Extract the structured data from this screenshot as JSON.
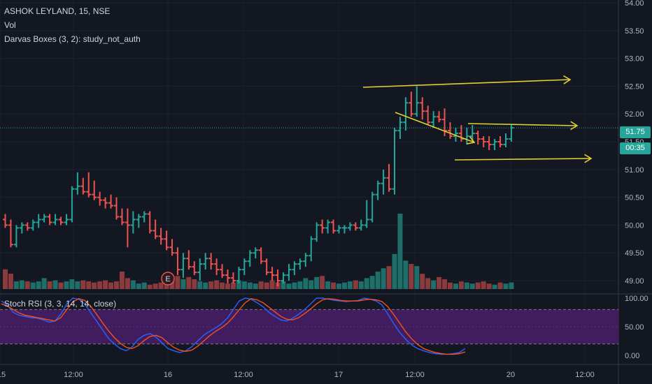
{
  "header": {
    "symbol_line": "ASHOK LEYLAND, 15, NSE",
    "indicator_vol": "Vol",
    "indicator_darvas": "Darvas Boxes (3, 2): study_not_auth"
  },
  "price_tags": {
    "last_price": "51.75",
    "countdown": "00:35"
  },
  "rsi_panel": {
    "title": "Stoch RSI (3, 3, 14, 14, close)"
  },
  "colors": {
    "background": "#131722",
    "up": "#26a69a",
    "down": "#ef5350",
    "volume_up": "#1e6f69",
    "volume_down": "#8b3a3d",
    "annotation": "#e0d030",
    "rsi_k": "#2962ff",
    "rsi_d": "#f4511e",
    "rsi_band": "#4a1f6b",
    "price_line": "#26a69a"
  },
  "chart_data": [
    {
      "type": "candlestick",
      "title": "",
      "y_axis": {
        "ticks": [
          "54.00",
          "53.50",
          "53.00",
          "52.50",
          "52.00",
          "51.50",
          "51.00",
          "50.50",
          "50.00",
          "49.50",
          "49.00"
        ],
        "range": [
          48.85,
          54.1
        ]
      },
      "x_axis": {
        "ticks": [
          "15",
          "12:00",
          "16",
          "12:00",
          "17",
          "12:00",
          "20",
          "12:00"
        ]
      },
      "last_price": 51.75,
      "ohlc": [
        [
          50.1,
          50.2,
          49.95,
          50.0
        ],
        [
          50.0,
          50.1,
          49.6,
          49.65
        ],
        [
          49.65,
          50.0,
          49.6,
          49.95
        ],
        [
          49.95,
          50.05,
          49.85,
          50.0
        ],
        [
          50.0,
          50.05,
          49.9,
          49.95
        ],
        [
          49.95,
          50.1,
          49.9,
          50.05
        ],
        [
          50.05,
          50.2,
          49.95,
          50.1
        ],
        [
          50.1,
          50.2,
          50.05,
          50.15
        ],
        [
          50.15,
          50.2,
          50.0,
          50.05
        ],
        [
          50.05,
          50.2,
          50.0,
          50.1
        ],
        [
          50.1,
          50.15,
          50.0,
          50.05
        ],
        [
          50.05,
          50.2,
          50.0,
          50.1
        ],
        [
          50.1,
          50.7,
          50.05,
          50.65
        ],
        [
          50.65,
          50.95,
          50.55,
          50.7
        ],
        [
          50.7,
          50.85,
          50.55,
          50.6
        ],
        [
          50.6,
          50.95,
          50.5,
          50.55
        ],
        [
          50.55,
          50.8,
          50.45,
          50.5
        ],
        [
          50.5,
          50.6,
          50.35,
          50.45
        ],
        [
          50.45,
          50.5,
          50.3,
          50.4
        ],
        [
          50.4,
          50.55,
          50.3,
          50.35
        ],
        [
          50.35,
          50.5,
          50.1,
          50.15
        ],
        [
          50.15,
          50.3,
          50.0,
          50.05
        ],
        [
          50.05,
          50.3,
          49.6,
          50.0
        ],
        [
          50.0,
          50.25,
          49.85,
          50.1
        ],
        [
          50.1,
          50.2,
          49.95,
          50.15
        ],
        [
          50.15,
          50.25,
          50.05,
          50.2
        ],
        [
          50.2,
          50.25,
          49.85,
          49.9
        ],
        [
          49.9,
          50.1,
          49.75,
          49.8
        ],
        [
          49.8,
          49.95,
          49.65,
          49.75
        ],
        [
          49.75,
          49.9,
          49.55,
          49.6
        ],
        [
          49.6,
          49.75,
          49.45,
          49.5
        ],
        [
          49.5,
          49.6,
          49.1,
          49.2
        ],
        [
          49.2,
          49.5,
          49.05,
          49.4
        ],
        [
          49.4,
          49.55,
          49.2,
          49.25
        ],
        [
          49.25,
          49.35,
          49.1,
          49.15
        ],
        [
          49.15,
          49.4,
          49.0,
          49.3
        ],
        [
          49.3,
          49.5,
          49.2,
          49.4
        ],
        [
          49.4,
          49.5,
          49.2,
          49.3
        ],
        [
          49.3,
          49.4,
          49.1,
          49.2
        ],
        [
          49.2,
          49.3,
          49.05,
          49.1
        ],
        [
          49.1,
          49.2,
          48.95,
          49.05
        ],
        [
          49.05,
          49.15,
          48.95,
          49.0
        ],
        [
          49.0,
          49.25,
          48.95,
          49.2
        ],
        [
          49.2,
          49.4,
          49.1,
          49.35
        ],
        [
          49.35,
          49.55,
          49.25,
          49.5
        ],
        [
          49.5,
          49.6,
          49.4,
          49.55
        ],
        [
          49.55,
          49.6,
          49.3,
          49.35
        ],
        [
          49.35,
          49.4,
          49.1,
          49.15
        ],
        [
          49.15,
          49.25,
          49.0,
          49.1
        ],
        [
          49.1,
          49.2,
          48.9,
          49.0
        ],
        [
          49.0,
          49.15,
          48.95,
          49.1
        ],
        [
          49.1,
          49.3,
          49.0,
          49.2
        ],
        [
          49.2,
          49.35,
          49.1,
          49.3
        ],
        [
          49.3,
          49.4,
          49.2,
          49.35
        ],
        [
          49.35,
          49.5,
          49.25,
          49.45
        ],
        [
          49.45,
          49.8,
          49.35,
          49.75
        ],
        [
          49.75,
          50.05,
          49.7,
          50.0
        ],
        [
          50.0,
          50.1,
          49.85,
          49.95
        ],
        [
          49.95,
          50.1,
          49.85,
          50.05
        ],
        [
          50.05,
          50.1,
          49.85,
          49.9
        ],
        [
          49.9,
          50.0,
          49.85,
          49.95
        ],
        [
          49.95,
          50.0,
          49.85,
          49.95
        ],
        [
          49.95,
          50.05,
          49.9,
          50.0
        ],
        [
          50.0,
          50.05,
          49.9,
          49.95
        ],
        [
          49.95,
          50.1,
          49.9,
          50.0
        ],
        [
          50.0,
          50.45,
          49.95,
          50.1
        ],
        [
          50.1,
          50.6,
          50.05,
          50.55
        ],
        [
          50.55,
          50.8,
          50.45,
          50.75
        ],
        [
          50.75,
          51.0,
          50.55,
          50.85
        ],
        [
          50.85,
          51.1,
          50.6,
          50.65
        ],
        [
          50.65,
          51.75,
          50.55,
          51.7
        ],
        [
          51.7,
          51.95,
          51.55,
          51.85
        ],
        [
          51.85,
          52.3,
          51.7,
          52.2
        ],
        [
          52.2,
          52.4,
          51.95,
          52.0
        ],
        [
          52.0,
          52.5,
          51.95,
          52.2
        ],
        [
          52.2,
          52.3,
          51.9,
          52.05
        ],
        [
          52.05,
          52.15,
          51.8,
          51.85
        ],
        [
          51.85,
          52.05,
          51.75,
          51.95
        ],
        [
          51.95,
          52.05,
          51.85,
          51.9
        ],
        [
          51.9,
          52.1,
          51.6,
          51.7
        ],
        [
          51.7,
          51.85,
          51.55,
          51.6
        ],
        [
          51.6,
          51.75,
          51.5,
          51.65
        ],
        [
          51.65,
          51.8,
          51.5,
          51.55
        ],
        [
          51.55,
          51.75,
          51.45,
          51.6
        ],
        [
          51.6,
          51.8,
          51.5,
          51.65
        ],
        [
          51.65,
          51.7,
          51.45,
          51.55
        ],
        [
          51.55,
          51.6,
          51.4,
          51.5
        ],
        [
          51.5,
          51.6,
          51.35,
          51.45
        ],
        [
          51.45,
          51.55,
          51.35,
          51.5
        ],
        [
          51.5,
          51.6,
          51.4,
          51.45
        ],
        [
          51.45,
          51.65,
          51.4,
          51.55
        ],
        [
          51.55,
          51.8,
          51.5,
          51.75
        ]
      ],
      "volume": [
        0.9,
        0.7,
        0.35,
        0.4,
        0.35,
        0.3,
        0.35,
        0.5,
        0.35,
        0.4,
        0.3,
        0.35,
        0.45,
        0.35,
        0.4,
        0.35,
        0.3,
        0.35,
        0.4,
        0.3,
        0.35,
        0.8,
        0.5,
        0.4,
        0.25,
        0.3,
        0.2,
        0.25,
        0.3,
        0.35,
        0.5,
        0.6,
        0.45,
        0.55,
        0.45,
        0.35,
        0.3,
        0.35,
        0.4,
        0.3,
        0.25,
        0.3,
        0.4,
        0.35,
        0.3,
        0.25,
        0.35,
        0.3,
        0.4,
        0.3,
        0.35,
        0.25,
        0.3,
        0.35,
        0.5,
        0.4,
        0.55,
        0.6,
        0.35,
        0.3,
        0.25,
        0.3,
        0.35,
        0.4,
        0.35,
        0.5,
        0.6,
        0.8,
        0.95,
        1.05,
        1.6,
        3.45,
        1.3,
        1.15,
        1.05,
        0.7,
        0.5,
        0.4,
        0.55,
        0.45,
        0.3,
        0.25,
        0.35,
        0.3,
        0.25,
        0.3,
        0.35,
        0.25,
        0.2,
        0.3,
        0.25,
        0.3
      ]
    },
    {
      "type": "line",
      "title": "Stoch RSI (3, 3, 14, 14, close)",
      "y_axis": {
        "ticks": [
          "100.00",
          "50.00",
          "0.00"
        ],
        "range": [
          0,
          100
        ]
      },
      "band": [
        20,
        80
      ],
      "series": [
        {
          "values": [
            95,
            88,
            75,
            70,
            68,
            66,
            65,
            62,
            58,
            60,
            72,
            90,
            100,
            98,
            90,
            75,
            60,
            45,
            30,
            20,
            12,
            8,
            15,
            28,
            35,
            38,
            32,
            22,
            12,
            8,
            5,
            8,
            15,
            25,
            35,
            42,
            48,
            55,
            65,
            80,
            95,
            100,
            98,
            92,
            85,
            75,
            68,
            62,
            60,
            65,
            72,
            80,
            90,
            100,
            100,
            98,
            96,
            95,
            94,
            95,
            96,
            100,
            98,
            95,
            88,
            72,
            55,
            40,
            28,
            18,
            12,
            8,
            5,
            3,
            2,
            2,
            3,
            5,
            12
          ]
        },
        {
          "values": [
            90,
            86,
            80,
            74,
            70,
            68,
            66,
            64,
            62,
            60,
            66,
            80,
            93,
            99,
            96,
            86,
            72,
            57,
            43,
            31,
            21,
            14,
            12,
            17,
            26,
            33,
            35,
            31,
            22,
            14,
            9,
            7,
            9,
            16,
            25,
            34,
            42,
            48,
            56,
            67,
            80,
            92,
            99,
            97,
            92,
            84,
            76,
            68,
            63,
            62,
            66,
            73,
            81,
            90,
            97,
            99,
            98,
            96,
            95,
            95,
            95,
            97,
            98,
            97,
            94,
            85,
            71,
            56,
            41,
            29,
            19,
            12,
            8,
            5,
            3,
            2,
            2,
            3,
            6
          ]
        }
      ]
    }
  ]
}
